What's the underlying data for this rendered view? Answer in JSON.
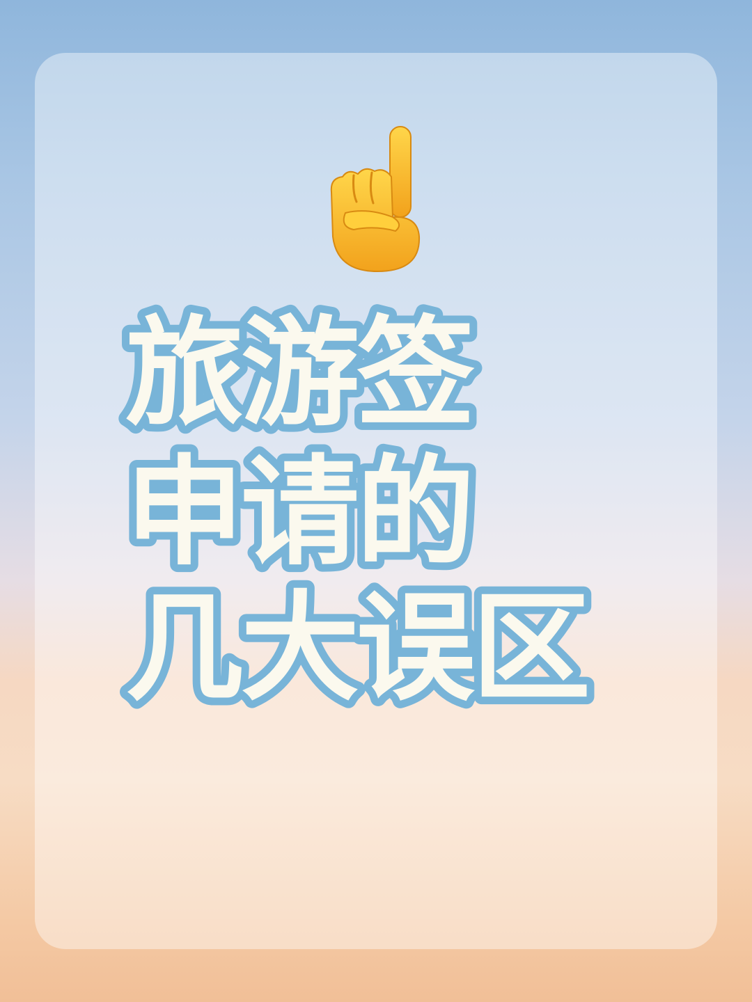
{
  "title": {
    "line1": "旅游签",
    "line2": "申请的",
    "line3": "几大误区"
  },
  "icons": {
    "pointer": "index-pointing-up-icon"
  },
  "colors": {
    "text_fill": "#fbf9ee",
    "text_outline": "#78b4d8",
    "sky_top": "#8fb6dc",
    "sky_bottom": "#f1bf97",
    "emoji_yellow": "#f7c22f"
  }
}
